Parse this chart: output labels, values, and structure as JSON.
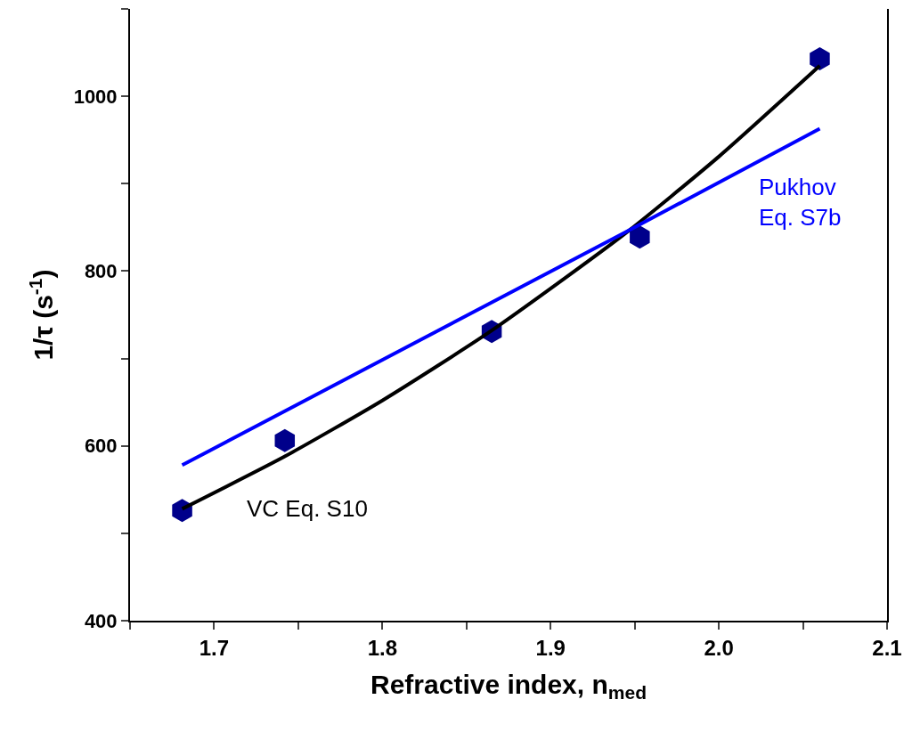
{
  "chart_data": {
    "type": "scatter",
    "xlabel": "Refractive index, n$_{med}$",
    "ylabel": "1/τ (s$^{-1}$)",
    "xlim": [
      1.65,
      2.1
    ],
    "ylim": [
      400,
      1100
    ],
    "xticks": [
      {
        "value": 1.65,
        "label": null
      },
      1.7,
      {
        "value": 1.75,
        "label": null
      },
      1.8,
      {
        "value": 1.85,
        "label": null
      },
      1.9,
      {
        "value": 1.95,
        "label": null
      },
      {
        "value": 2.0,
        "label": "2.0"
      },
      {
        "value": 2.05,
        "label": null
      },
      2.1
    ],
    "yticks": [
      400,
      {
        "value": 500,
        "label": null
      },
      600,
      {
        "value": 700,
        "label": null
      },
      800,
      {
        "value": 900,
        "label": null
      },
      1000,
      {
        "value": 1100,
        "label": null
      }
    ],
    "series": [
      {
        "color": "#00008b",
        "x": [
          1.681,
          1.742,
          1.865,
          1.953,
          2.06
        ],
        "values": [
          526,
          606,
          731,
          839,
          1043
        ]
      },
      {
        "type": "line",
        "name": "VC Eq. S10",
        "color": "#000000",
        "x": [
          1.681,
          1.742,
          1.8,
          1.865,
          1.943,
          2.0,
          2.06
        ],
        "values": [
          528,
          588,
          652,
          732,
          841,
          931,
          1035
        ]
      },
      {
        "type": "line",
        "name": "Pukhov\nEq. S7b",
        "color": "#0000ff",
        "x": [
          1.681,
          1.943,
          2.06
        ],
        "values": [
          578,
          843,
          963
        ]
      }
    ]
  }
}
